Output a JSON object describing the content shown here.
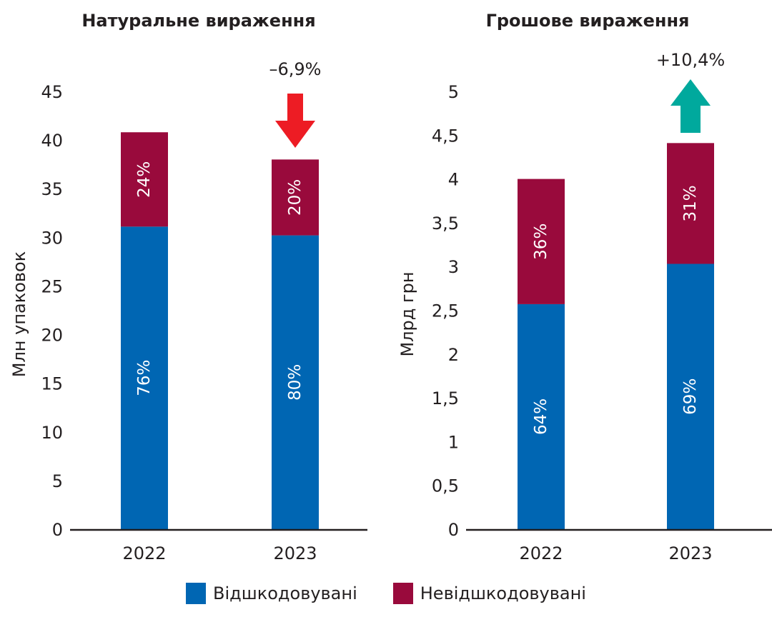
{
  "chart_data": [
    {
      "type": "bar",
      "stacked": true,
      "title": "Натуральне вираження",
      "ylabel": "Млн упаковок",
      "xlabel": "",
      "categories": [
        "2022",
        "2023"
      ],
      "ylim": [
        0,
        45
      ],
      "yticks": [
        0,
        5,
        10,
        15,
        20,
        25,
        30,
        35,
        40,
        45
      ],
      "ytick_labels": [
        "0",
        "5",
        "10",
        "15",
        "20",
        "25",
        "30",
        "35",
        "40",
        "45"
      ],
      "series": [
        {
          "name": "Відшкодовувані",
          "color": "#0066b3",
          "values": [
            31.1,
            30.2
          ],
          "labels": [
            "76%",
            "80%"
          ]
        },
        {
          "name": "Невідшкодовувані",
          "color": "#990a3c",
          "values": [
            9.7,
            7.8
          ],
          "labels": [
            "24%",
            "20%"
          ]
        }
      ],
      "annotation": {
        "text": "–6,9%",
        "direction": "down",
        "color": "#ed1c24",
        "category": "2023"
      }
    },
    {
      "type": "bar",
      "stacked": true,
      "title": "Грошове вираження",
      "ylabel": "Млрд грн",
      "xlabel": "",
      "categories": [
        "2022",
        "2023"
      ],
      "ylim": [
        0,
        5
      ],
      "yticks": [
        0,
        0.5,
        1,
        1.5,
        2,
        2.5,
        3,
        3.5,
        4,
        4.5,
        5
      ],
      "ytick_labels": [
        "0",
        "0,5",
        "1",
        "1,5",
        "2",
        "2,5",
        "3",
        "3,5",
        "4",
        "4,5",
        "5"
      ],
      "series": [
        {
          "name": "Відшкодовувані",
          "color": "#0066b3",
          "values": [
            2.57,
            3.03
          ],
          "labels": [
            "64%",
            "69%"
          ]
        },
        {
          "name": "Невідшкодовувані",
          "color": "#990a3c",
          "values": [
            1.43,
            1.38
          ],
          "labels": [
            "36%",
            "31%"
          ]
        }
      ],
      "annotation": {
        "text": "+10,4%",
        "direction": "up",
        "color": "#00a99d",
        "category": "2023"
      }
    }
  ],
  "legend": {
    "position": "bottom-center",
    "items": [
      {
        "label": "Відшкодовувані",
        "color": "#0066b3"
      },
      {
        "label": "Невідшкодовувані",
        "color": "#990a3c"
      }
    ]
  }
}
